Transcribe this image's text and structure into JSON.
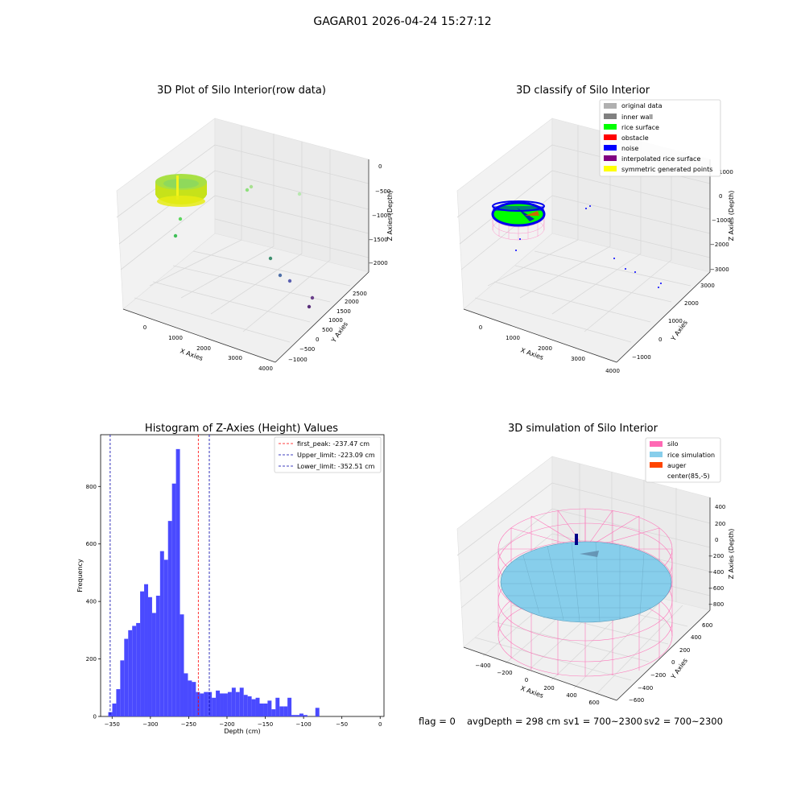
{
  "suptitle": "GAGAR01 2026-04-24 15:27:12",
  "colors": {
    "hist_bar": "#4a4aff",
    "peak_line": "#ff0000",
    "limit_line": "#0000aa",
    "silo": "#ff69b4",
    "rice_sim": "#87ceeb",
    "auger": "#ff4500",
    "rice_surface": "#00ff00",
    "noise": "#0000ff"
  },
  "panel1": {
    "title": "3D Plot of Silo Interior(row data)",
    "xlabel": "X Axies",
    "ylabel": "Y Axies",
    "zlabel": "Z Axies (Depth)",
    "xticks": [
      "0",
      "1000",
      "2000",
      "3000",
      "4000"
    ],
    "yticks": [
      "−1000",
      "−500",
      "0",
      "500",
      "1000",
      "1500",
      "2000",
      "2500"
    ],
    "zticks": [
      "0",
      "−500",
      "−1000",
      "−1500",
      "−2000"
    ]
  },
  "panel2": {
    "title": "3D classify of Silo Interior",
    "xlabel": "X Axies",
    "ylabel": "Y Axies",
    "zlabel": "Z Axies (Depth)",
    "xticks": [
      "0",
      "1000",
      "2000",
      "3000",
      "4000"
    ],
    "yticks": [
      "−1000",
      "0",
      "1000",
      "2000",
      "3000"
    ],
    "zticks": [
      "1000",
      "0",
      "−1000",
      "−2000",
      "−3000"
    ],
    "legend": [
      {
        "label": "original data",
        "color": "#b0b0b0"
      },
      {
        "label": "inner wall",
        "color": "#808080"
      },
      {
        "label": "rice surface",
        "color": "#00ff00"
      },
      {
        "label": "obstacle",
        "color": "#ff0000"
      },
      {
        "label": "noise",
        "color": "#0000ff"
      },
      {
        "label": "interpolated rice surface",
        "color": "#800080"
      },
      {
        "label": "symmetric generated points",
        "color": "#ffff00"
      }
    ]
  },
  "panel4": {
    "title": "3D simulation of Silo Interior",
    "xlabel": "X Axies",
    "ylabel": "Y Axies",
    "zlabel": "Z Axies (Depth)",
    "xticks": [
      "−400",
      "−200",
      "0",
      "200",
      "400",
      "600"
    ],
    "yticks": [
      "−600",
      "−400",
      "−200",
      "0",
      "200",
      "400",
      "600"
    ],
    "zticks": [
      "400",
      "200",
      "0",
      "−200",
      "−400",
      "−600",
      "−800"
    ],
    "legend": [
      {
        "label": "silo",
        "color": "#ff69b4"
      },
      {
        "label": "rice simulation",
        "color": "#87ceeb"
      },
      {
        "label": "auger",
        "color": "#ff4500"
      },
      {
        "label": "center(85,-5)",
        "color": ""
      }
    ]
  },
  "footer": {
    "flag": "flag = 0",
    "avgdepth": "avgDepth = 298 cm",
    "sv1": "sv1 = 700~2300",
    "sv2": "sv2 = 700~2300"
  },
  "chart_data": {
    "type": "bar",
    "title": "Histogram of Z-Axies (Height) Values",
    "xlabel": "Depth (cm)",
    "ylabel": "Frequency",
    "xlim": [
      -365,
      5
    ],
    "ylim": [
      0,
      980
    ],
    "xticks": [
      -350,
      -300,
      -250,
      -200,
      -150,
      -100,
      -50,
      0
    ],
    "yticks": [
      0,
      200,
      400,
      600,
      800
    ],
    "bin_start": -355,
    "bin_width": 5.2,
    "values": [
      15,
      45,
      95,
      195,
      270,
      300,
      315,
      325,
      435,
      460,
      415,
      360,
      420,
      575,
      545,
      680,
      810,
      930,
      355,
      150,
      125,
      120,
      85,
      80,
      85,
      85,
      65,
      90,
      80,
      80,
      85,
      100,
      85,
      100,
      75,
      70,
      60,
      65,
      45,
      45,
      55,
      25,
      65,
      35,
      35,
      65,
      5,
      5,
      10,
      5,
      0,
      0,
      30
    ],
    "vlines": [
      {
        "label": "first_peak: -237.47 cm",
        "x": -237.47,
        "style": "dashed",
        "color": "#ff0000"
      },
      {
        "label": "Upper_limit: -223.09 cm",
        "x": -223.09,
        "style": "dashed",
        "color": "#0000aa"
      },
      {
        "label": "Lower_limit: -352.51 cm",
        "x": -352.51,
        "style": "dashed",
        "color": "#0000aa"
      }
    ]
  }
}
